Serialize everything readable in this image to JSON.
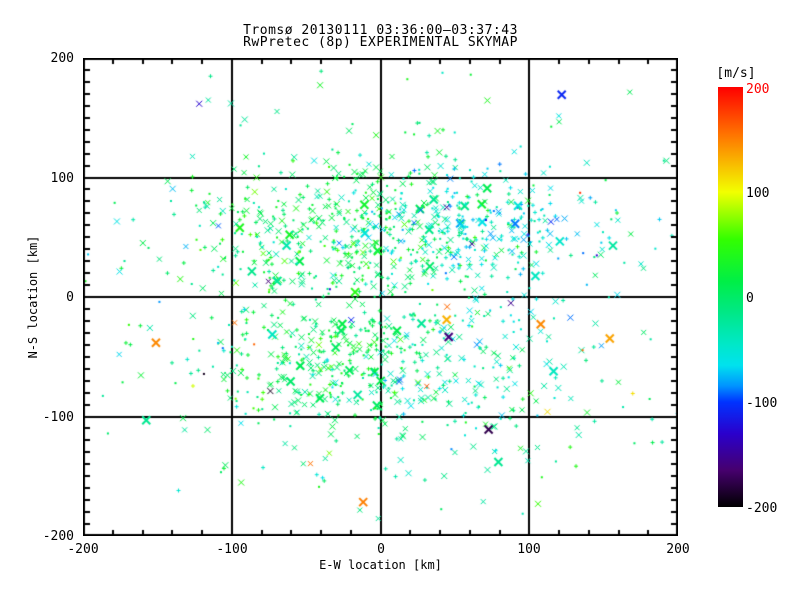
{
  "chart_data": {
    "type": "scatter",
    "title": "Tromsø 20130111 03:36:00–03:37:43",
    "subtitle": "RwPretec (8p) EXPERIMENTAL SKYMAP",
    "xlabel": "E-W location [km]",
    "ylabel": "N-S location [km]",
    "xlim": [
      -200,
      200
    ],
    "ylim": [
      -200,
      200
    ],
    "x_ticks": [
      "-200",
      "-100",
      "0",
      "100",
      "200"
    ],
    "y_ticks": [
      "200",
      "100",
      "0",
      "-100",
      "-200"
    ],
    "x_minor_step_km": 20,
    "y_minor_step_km": 10,
    "grid_lines_km": [
      -100,
      0,
      100
    ],
    "axis_color": "#000000",
    "background_color": "#ffffff",
    "colorbar": {
      "label": "[m/s]",
      "min": -200,
      "max": 200,
      "ticks": [
        {
          "value": 200,
          "label": "200",
          "color": "#ff0000"
        },
        {
          "value": 100,
          "label": "100",
          "color": "#000000"
        },
        {
          "value": 0,
          "label": "0",
          "color": "#000000"
        },
        {
          "value": -100,
          "label": "-100",
          "color": "#000000"
        },
        {
          "value": -200,
          "label": "-200",
          "color": "#000000"
        }
      ],
      "stops": [
        {
          "v": 200,
          "c": "#ff0000"
        },
        {
          "v": 155,
          "c": "#ff7300"
        },
        {
          "v": 100,
          "c": "#f2ff00"
        },
        {
          "v": 55,
          "c": "#33ff00"
        },
        {
          "v": 15,
          "c": "#00ef46"
        },
        {
          "v": -15,
          "c": "#00e887"
        },
        {
          "v": -45,
          "c": "#00e8c8"
        },
        {
          "v": -65,
          "c": "#00e2ee"
        },
        {
          "v": -85,
          "c": "#0092ff"
        },
        {
          "v": -100,
          "c": "#0033ff"
        },
        {
          "v": -130,
          "c": "#2a00cc"
        },
        {
          "v": -165,
          "c": "#46006e"
        },
        {
          "v": -200,
          "c": "#000000"
        }
      ]
    },
    "points_spec": {
      "seed": 20130111,
      "total_points": 1492,
      "marker_weights": {
        "x": 0.42,
        "plus": 0.26,
        "dot": 0.32
      },
      "clusters": [
        {
          "n": 420,
          "cx": -18,
          "cy": 55,
          "sx": 55,
          "sy": 30,
          "v_mean": 8,
          "v_sd": 26
        },
        {
          "n": 230,
          "cx": 62,
          "cy": 55,
          "sx": 40,
          "sy": 27,
          "v_mean": -55,
          "v_sd": 20
        },
        {
          "n": 300,
          "cx": -35,
          "cy": -55,
          "sx": 42,
          "sy": 27,
          "v_mean": 10,
          "v_sd": 24
        },
        {
          "n": 150,
          "cx": 42,
          "cy": -68,
          "sx": 55,
          "sy": 30,
          "v_mean": -35,
          "v_sd": 25
        },
        {
          "n": 360,
          "cx": 0,
          "cy": -5,
          "sx": 105,
          "sy": 95,
          "v_mean": -15,
          "v_sd": 35
        },
        {
          "n": 32,
          "cx": 0,
          "cy": -10,
          "sx": 110,
          "sy": 100,
          "extreme": true
        }
      ]
    }
  }
}
